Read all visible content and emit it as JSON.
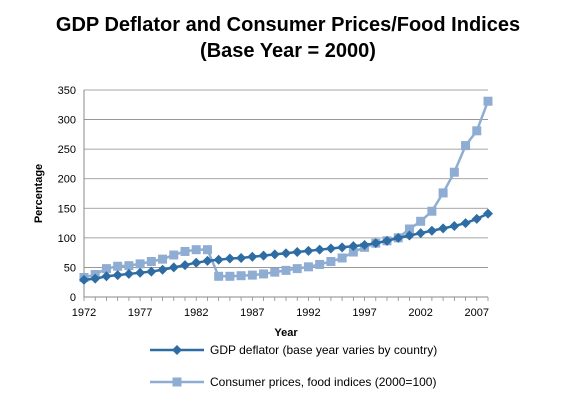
{
  "chart_data": {
    "type": "line",
    "title": "GDP Deflator and Consumer Prices/Food Indices",
    "subtitle": "(Base Year = 2000)",
    "xlabel": "Year",
    "ylabel": "Percentage",
    "xlim": [
      1972,
      2008
    ],
    "ylim": [
      0,
      350
    ],
    "yticks": [
      0,
      50,
      100,
      150,
      200,
      250,
      300,
      350
    ],
    "xticks": [
      1972,
      1977,
      1982,
      1987,
      1992,
      1997,
      2002,
      2007
    ],
    "grid": "horizontal",
    "legend_position": "bottom",
    "x": [
      1972,
      1973,
      1974,
      1975,
      1976,
      1977,
      1978,
      1979,
      1980,
      1981,
      1982,
      1983,
      1984,
      1985,
      1986,
      1987,
      1988,
      1989,
      1990,
      1991,
      1992,
      1993,
      1994,
      1995,
      1996,
      1997,
      1998,
      1999,
      2000,
      2001,
      2002,
      2003,
      2004,
      2005,
      2006,
      2007,
      2008
    ],
    "series": [
      {
        "name": "GDP deflator (base year varies by country)",
        "color": "#2e6ca4",
        "marker": "diamond",
        "values": [
          29,
          31,
          35,
          37,
          39,
          41,
          43,
          46,
          50,
          54,
          58,
          61,
          63,
          65,
          66,
          68,
          70,
          72,
          74,
          76,
          78,
          80,
          82,
          84,
          86,
          88,
          91,
          95,
          100,
          104,
          108,
          112,
          116,
          120,
          125,
          132,
          141
        ]
      },
      {
        "name": "Consumer prices, food indices (2000=100)",
        "color": "#8fadd3",
        "marker": "square",
        "values": [
          33,
          38,
          48,
          52,
          53,
          56,
          60,
          64,
          71,
          77,
          80,
          80,
          35,
          35,
          36,
          37,
          39,
          42,
          45,
          48,
          51,
          55,
          60,
          66,
          76,
          84,
          91,
          95,
          100,
          115,
          128,
          145,
          176,
          211,
          256,
          281,
          331
        ]
      }
    ]
  }
}
